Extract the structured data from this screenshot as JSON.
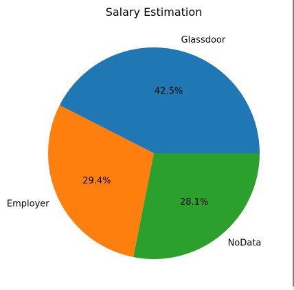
{
  "chart_data": {
    "type": "pie",
    "title": "Salary Estimation",
    "categories": [
      "Glassdoor",
      "Employer",
      "NoData"
    ],
    "values": [
      42.5,
      29.4,
      28.1
    ],
    "percent_labels": [
      "42.5%",
      "29.4%",
      "28.1%"
    ],
    "colors": [
      "#1f77b4",
      "#ff7f0e",
      "#2ca02c"
    ],
    "start_angle_deg": 0,
    "direction": "counterclockwise",
    "legend": "none"
  }
}
